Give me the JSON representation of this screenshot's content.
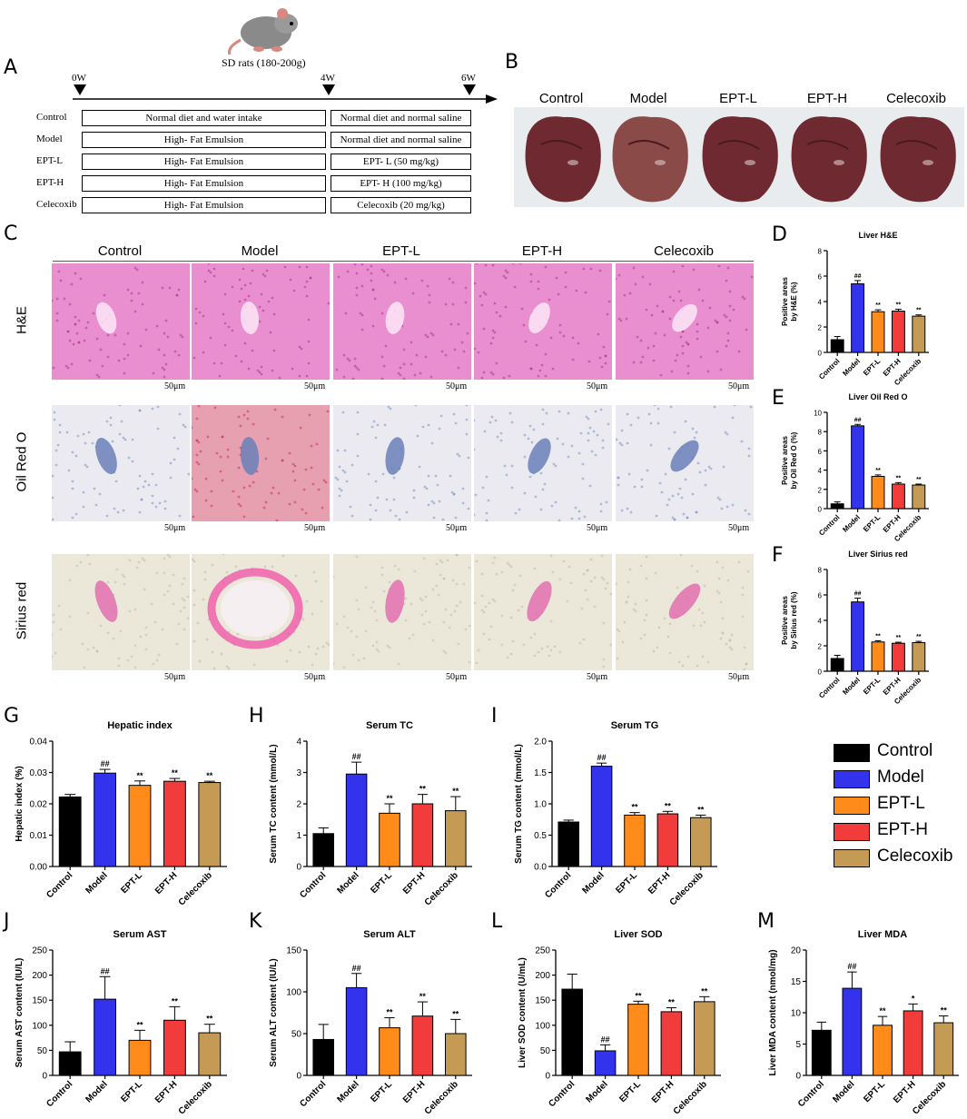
{
  "panels": {
    "A": "A",
    "B": "B",
    "C": "C",
    "D": "D",
    "E": "E",
    "F": "F",
    "G": "G",
    "H": "H",
    "I": "I",
    "J": "J",
    "K": "K",
    "L": "L",
    "M": "M"
  },
  "design": {
    "animal": "SD rats (180-200g)",
    "weeks": [
      "0W",
      "4W",
      "6W"
    ],
    "rows": [
      {
        "group": "Control",
        "phase1": "Normal diet and water intake",
        "phase2": "Normal diet and normal saline"
      },
      {
        "group": "Model",
        "phase1": "High- Fat Emulsion",
        "phase2": "Normal diet and normal saline"
      },
      {
        "group": "EPT-L",
        "phase1": "High- Fat Emulsion",
        "phase2": "EPT- L (50 mg/kg)"
      },
      {
        "group": "EPT-H",
        "phase1": "High- Fat Emulsion",
        "phase2": "EPT- H (100 mg/kg)"
      },
      {
        "group": "Celecoxib",
        "phase1": "High- Fat Emulsion",
        "phase2": "Celecoxib (20 mg/kg)"
      }
    ]
  },
  "groups": [
    "Control",
    "Model",
    "EPT-L",
    "EPT-H",
    "Celecoxib"
  ],
  "stains": [
    "H&E",
    "Oil Red O",
    "Sirius red"
  ],
  "scale_bar": "50μm",
  "colors": {
    "Control": "#000000",
    "Model": "#3333ee",
    "EPT-L": "#ff8c1a",
    "EPT-H": "#f23b3b",
    "Celecoxib": "#c49a55"
  },
  "legend": [
    "Control",
    "Model",
    "EPT-L",
    "EPT-H",
    "Celecoxib"
  ],
  "chart_data": [
    {
      "id": "D",
      "type": "bar",
      "title": "Liver H&E",
      "ylabel": "Positive areas\nby H&E (%)",
      "ylim": [
        0,
        8
      ],
      "yticks": [
        0,
        2,
        4,
        6,
        8
      ],
      "categories": [
        "Control",
        "Model",
        "EPT-L",
        "EPT-H",
        "Celecoxib"
      ],
      "values": [
        1.0,
        5.4,
        3.2,
        3.25,
        2.85
      ],
      "errors": [
        0.25,
        0.25,
        0.15,
        0.15,
        0.1
      ],
      "marks": [
        "",
        "##",
        "**",
        "**",
        "**"
      ]
    },
    {
      "id": "E",
      "type": "bar",
      "title": "Liver Oil Red O",
      "ylabel": "Positive areas\nby Oil Red O (%)",
      "ylim": [
        0,
        10
      ],
      "yticks": [
        0,
        2,
        4,
        6,
        8,
        10
      ],
      "categories": [
        "Control",
        "Model",
        "EPT-L",
        "EPT-H",
        "Celecoxib"
      ],
      "values": [
        0.5,
        8.6,
        3.35,
        2.55,
        2.45
      ],
      "errors": [
        0.2,
        0.15,
        0.15,
        0.15,
        0.1
      ],
      "marks": [
        "",
        "##",
        "**",
        "**",
        "**"
      ]
    },
    {
      "id": "F",
      "type": "bar",
      "title": "Liver Sirius red",
      "ylabel": "Positive areas\nby Sirius red (%)",
      "ylim": [
        0,
        8
      ],
      "yticks": [
        0,
        2,
        4,
        6,
        8
      ],
      "categories": [
        "Control",
        "Model",
        "EPT-L",
        "EPT-H",
        "Celecoxib"
      ],
      "values": [
        1.0,
        5.45,
        2.3,
        2.2,
        2.25
      ],
      "errors": [
        0.25,
        0.3,
        0.1,
        0.08,
        0.1
      ],
      "marks": [
        "",
        "##",
        "**",
        "**",
        "**"
      ]
    },
    {
      "id": "G",
      "type": "bar",
      "title": "Hepatic index",
      "ylabel": "Hepatic index (%)",
      "ylim": [
        0,
        0.04
      ],
      "yticks": [
        "0.00",
        "0.01",
        "0.02",
        "0.03",
        "0.04"
      ],
      "categories": [
        "Control",
        "Model",
        "EPT-L",
        "EPT-H",
        "Celecoxib"
      ],
      "values": [
        0.0222,
        0.0298,
        0.0259,
        0.0272,
        0.0268
      ],
      "errors": [
        0.0008,
        0.0012,
        0.0014,
        0.0009,
        0.0004
      ],
      "marks": [
        "",
        "##",
        "**",
        "**",
        "**"
      ]
    },
    {
      "id": "H",
      "type": "bar",
      "title": "Serum TC",
      "ylabel": "Serum TC content (mmol/L)",
      "ylim": [
        0,
        4
      ],
      "yticks": [
        0,
        1,
        2,
        3,
        4
      ],
      "categories": [
        "Control",
        "Model",
        "EPT-L",
        "EPT-H",
        "Celecoxib"
      ],
      "values": [
        1.05,
        2.95,
        1.7,
        2.0,
        1.78
      ],
      "errors": [
        0.18,
        0.38,
        0.3,
        0.3,
        0.45
      ],
      "marks": [
        "",
        "##",
        "**",
        "**",
        "**"
      ]
    },
    {
      "id": "I",
      "type": "bar",
      "title": "Serum TG",
      "ylabel": "Serum TG content (mmol/L)",
      "ylim": [
        0,
        2.0
      ],
      "yticks": [
        "0.0",
        "0.5",
        "1.0",
        "1.5",
        "2.0"
      ],
      "categories": [
        "Control",
        "Model",
        "EPT-L",
        "EPT-H",
        "Celecoxib"
      ],
      "values": [
        0.71,
        1.6,
        0.82,
        0.84,
        0.78
      ],
      "errors": [
        0.03,
        0.05,
        0.04,
        0.04,
        0.04
      ],
      "marks": [
        "",
        "##",
        "**",
        "**",
        "**"
      ]
    },
    {
      "id": "J",
      "type": "bar",
      "title": "Serum AST",
      "ylabel": "Serum AST content (IU/L)",
      "ylim": [
        0,
        250
      ],
      "yticks": [
        0,
        50,
        100,
        150,
        200,
        250
      ],
      "categories": [
        "Control",
        "Model",
        "EPT-L",
        "EPT-H",
        "Celecoxib"
      ],
      "values": [
        47,
        152,
        70,
        110,
        85
      ],
      "errors": [
        20,
        45,
        20,
        27,
        17
      ],
      "marks": [
        "",
        "##",
        "**",
        "**",
        "**"
      ]
    },
    {
      "id": "K",
      "type": "bar",
      "title": "Serum ALT",
      "ylabel": "Serum ALT content (IU/L)",
      "ylim": [
        0,
        150
      ],
      "yticks": [
        0,
        50,
        100,
        150
      ],
      "categories": [
        "Control",
        "Model",
        "EPT-L",
        "EPT-H",
        "Celecoxib"
      ],
      "values": [
        43,
        105,
        57,
        71,
        50
      ],
      "errors": [
        18,
        17,
        12,
        17,
        17
      ],
      "marks": [
        "",
        "##",
        "**",
        "**",
        "**"
      ]
    },
    {
      "id": "L",
      "type": "bar",
      "title": "Liver SOD",
      "ylabel": "Liver SOD content (U/mL)",
      "ylim": [
        0,
        250
      ],
      "yticks": [
        0,
        50,
        100,
        150,
        200,
        250
      ],
      "categories": [
        "Control",
        "Model",
        "EPT-L",
        "EPT-H",
        "Celecoxib"
      ],
      "values": [
        172,
        49,
        142,
        127,
        147
      ],
      "errors": [
        30,
        12,
        6,
        8,
        10
      ],
      "marks": [
        "",
        "##",
        "**",
        "**",
        "**"
      ]
    },
    {
      "id": "M",
      "type": "bar",
      "title": "Liver MDA",
      "ylabel": "Liver MDA content (nmol/mg)",
      "ylim": [
        0,
        20
      ],
      "yticks": [
        0,
        5,
        10,
        15,
        20
      ],
      "categories": [
        "Control",
        "Model",
        "EPT-L",
        "EPT-H",
        "Celecoxib"
      ],
      "values": [
        7.2,
        13.9,
        8.0,
        10.3,
        8.4
      ],
      "errors": [
        1.3,
        2.6,
        1.4,
        1.1,
        1.1
      ],
      "marks": [
        "",
        "##",
        "**",
        "*",
        "**"
      ]
    }
  ]
}
